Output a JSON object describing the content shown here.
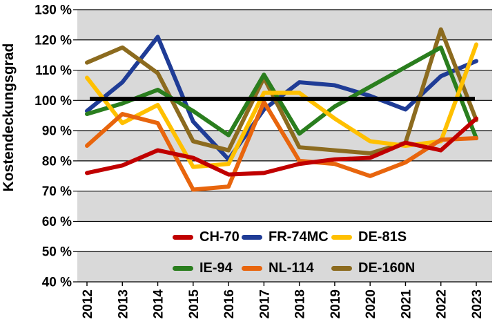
{
  "chart_data": {
    "type": "line",
    "title": "",
    "ylabel": "Kostendeckungsgrad",
    "xlabel": "",
    "x": [
      "2012",
      "2013",
      "2014",
      "2015",
      "2016",
      "2017",
      "2018",
      "2019",
      "2020",
      "2021",
      "2022",
      "2023"
    ],
    "ylim": [
      40,
      130
    ],
    "ytick_step": 10,
    "ytick_suffix": " %",
    "x_tick_rotation": 90,
    "grid": "horizontal-black",
    "band_fill": "#D9D9D9",
    "background": "#FFFFFF",
    "reference_line": {
      "value": 100.5,
      "color": "#000000"
    },
    "legend_position": "bottom-two-rows",
    "legend_rows": [
      [
        "CH-70",
        "FR-74MC",
        "DE-81S"
      ],
      [
        "IE-94",
        "NL-114",
        "DE-160N"
      ]
    ],
    "draw_order": [
      "FR-74MC",
      "DE-160N",
      "IE-94",
      "DE-81S",
      "NL-114",
      "CH-70"
    ],
    "series": [
      {
        "name": "CH-70",
        "color": "#C00000",
        "values": [
          76,
          78.5,
          83.5,
          81,
          75.5,
          76,
          79,
          80.5,
          81,
          86,
          83.5,
          94
        ]
      },
      {
        "name": "FR-74MC",
        "color": "#1F3C96",
        "values": [
          96.5,
          106,
          121,
          93,
          80.5,
          97,
          106,
          105,
          101.5,
          97,
          108,
          113
        ]
      },
      {
        "name": "DE-81S",
        "color": "#FFC000",
        "values": [
          107.5,
          92.5,
          98.5,
          78,
          79,
          102.5,
          102.5,
          94,
          86.5,
          85,
          86.5,
          118.5
        ]
      },
      {
        "name": "IE-94",
        "color": "#2A7E1E",
        "values": [
          95.5,
          99,
          103.5,
          96.5,
          88.5,
          108.5,
          89,
          98,
          104.5,
          111,
          117.5,
          87.5
        ]
      },
      {
        "name": "NL-114",
        "color": "#E8650D",
        "values": [
          85,
          95.5,
          92.5,
          70.5,
          71.5,
          99.5,
          80,
          79,
          75,
          79.5,
          87,
          87.5
        ]
      },
      {
        "name": "DE-160N",
        "color": "#8C6B1F",
        "values": [
          112.5,
          117.5,
          109,
          86.5,
          83.5,
          107.5,
          84.5,
          83.5,
          82.5,
          86,
          123.5,
          93.5
        ]
      }
    ]
  }
}
